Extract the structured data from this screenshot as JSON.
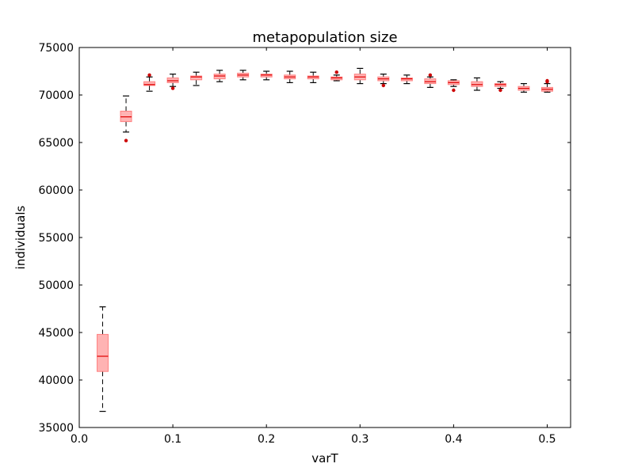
{
  "chart_data": {
    "type": "box",
    "title": "metapopulation size",
    "xlabel": "varT",
    "ylabel": "individuals",
    "xlim": [
      0.0,
      0.525
    ],
    "ylim": [
      35000,
      75000
    ],
    "xticks": [
      0.0,
      0.1,
      0.2,
      0.3,
      0.4,
      0.5
    ],
    "xtick_labels": [
      "0.0",
      "0.1",
      "0.2",
      "0.3",
      "0.4",
      "0.5"
    ],
    "yticks": [
      35000,
      40000,
      45000,
      50000,
      55000,
      60000,
      65000,
      70000,
      75000
    ],
    "ytick_labels": [
      "35000",
      "40000",
      "45000",
      "50000",
      "55000",
      "60000",
      "65000",
      "70000",
      "75000"
    ],
    "grid": false,
    "colors": {
      "box_fill": "#ffb3b3",
      "box_edge": "#ff8080",
      "median": "#e00000",
      "whisker": "#000000",
      "outlier": "#cc0000"
    },
    "boxes": [
      {
        "x": 0.025,
        "whislo": 36700,
        "q1": 40900,
        "med": 42500,
        "q3": 44800,
        "whishi": 47700,
        "fliers": []
      },
      {
        "x": 0.05,
        "whislo": 66100,
        "q1": 67200,
        "med": 67700,
        "q3": 68300,
        "whishi": 69900,
        "fliers": [
          65200
        ]
      },
      {
        "x": 0.075,
        "whislo": 70400,
        "q1": 71000,
        "med": 71100,
        "q3": 71400,
        "whishi": 71900,
        "fliers": [
          72100
        ]
      },
      {
        "x": 0.1,
        "whislo": 70900,
        "q1": 71300,
        "med": 71500,
        "q3": 71800,
        "whishi": 72200,
        "fliers": [
          70700
        ]
      },
      {
        "x": 0.125,
        "whislo": 71000,
        "q1": 71600,
        "med": 71900,
        "q3": 72000,
        "whishi": 72400,
        "fliers": []
      },
      {
        "x": 0.15,
        "whislo": 71400,
        "q1": 71700,
        "med": 72000,
        "q3": 72200,
        "whishi": 72600,
        "fliers": []
      },
      {
        "x": 0.175,
        "whislo": 71600,
        "q1": 71900,
        "med": 72100,
        "q3": 72300,
        "whishi": 72600,
        "fliers": []
      },
      {
        "x": 0.2,
        "whislo": 71600,
        "q1": 71900,
        "med": 72100,
        "q3": 72200,
        "whishi": 72500,
        "fliers": []
      },
      {
        "x": 0.225,
        "whislo": 71300,
        "q1": 71700,
        "med": 71900,
        "q3": 72100,
        "whishi": 72500,
        "fliers": []
      },
      {
        "x": 0.25,
        "whislo": 71300,
        "q1": 71700,
        "med": 71900,
        "q3": 72000,
        "whishi": 72400,
        "fliers": []
      },
      {
        "x": 0.275,
        "whislo": 71500,
        "q1": 71600,
        "med": 71800,
        "q3": 71900,
        "whishi": 72100,
        "fliers": [
          72400
        ]
      },
      {
        "x": 0.3,
        "whislo": 71200,
        "q1": 71600,
        "med": 71900,
        "q3": 72200,
        "whishi": 72800,
        "fliers": []
      },
      {
        "x": 0.325,
        "whislo": 71200,
        "q1": 71500,
        "med": 71700,
        "q3": 71900,
        "whishi": 72200,
        "fliers": [
          71000
        ]
      },
      {
        "x": 0.35,
        "whislo": 71200,
        "q1": 71500,
        "med": 71700,
        "q3": 71800,
        "whishi": 72100,
        "fliers": []
      },
      {
        "x": 0.375,
        "whislo": 70800,
        "q1": 71200,
        "med": 71400,
        "q3": 71700,
        "whishi": 71900,
        "fliers": [
          72100
        ]
      },
      {
        "x": 0.4,
        "whislo": 70900,
        "q1": 71100,
        "med": 71300,
        "q3": 71500,
        "whishi": 71600,
        "fliers": [
          70500
        ]
      },
      {
        "x": 0.425,
        "whislo": 70500,
        "q1": 70900,
        "med": 71100,
        "q3": 71400,
        "whishi": 71800,
        "fliers": []
      },
      {
        "x": 0.45,
        "whislo": 70700,
        "q1": 70900,
        "med": 71100,
        "q3": 71200,
        "whishi": 71400,
        "fliers": [
          70500
        ]
      },
      {
        "x": 0.475,
        "whislo": 70300,
        "q1": 70500,
        "med": 70700,
        "q3": 70900,
        "whishi": 71200,
        "fliers": []
      },
      {
        "x": 0.5,
        "whislo": 70300,
        "q1": 70400,
        "med": 70600,
        "q3": 70800,
        "whishi": 71200,
        "fliers": [
          71500,
          71400
        ]
      }
    ]
  }
}
